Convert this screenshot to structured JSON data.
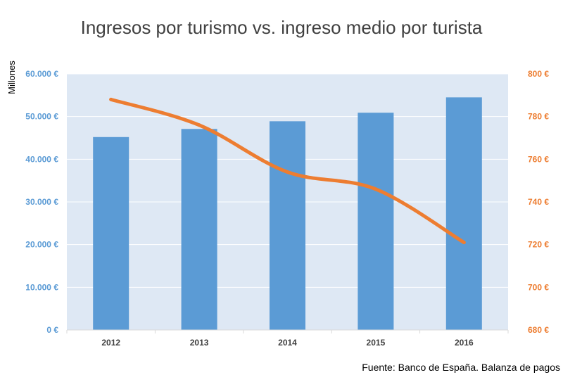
{
  "chart_data": {
    "type": "bar",
    "title": "Ingresos por turismo vs. ingreso medio por turista",
    "ylabel": "Millones",
    "categories": [
      "2012",
      "2013",
      "2014",
      "2015",
      "2016"
    ],
    "series": [
      {
        "type": "bar",
        "axis": "left",
        "values": [
          45200,
          47100,
          48900,
          50900,
          54500
        ]
      },
      {
        "type": "line",
        "axis": "right",
        "values": [
          788,
          776,
          754,
          746,
          721
        ]
      }
    ],
    "ylim": [
      0,
      60000
    ],
    "y2lim": [
      680,
      800
    ],
    "left_ticks": [
      "0 €",
      "10.000 €",
      "20.000 €",
      "30.000 €",
      "40.000 €",
      "50.000 €",
      "60.000 €"
    ],
    "right_ticks": [
      "680 €",
      "700 €",
      "720 €",
      "740 €",
      "760 €",
      "780 €",
      "800 €"
    ],
    "grid": true,
    "source": "Fuente: Banco de España. Balanza de pagos",
    "colors": {
      "bars": "#5b9bd5",
      "line": "#ed7d31",
      "plot_bg": "#dee8f4",
      "grid": "#ffffff"
    }
  }
}
